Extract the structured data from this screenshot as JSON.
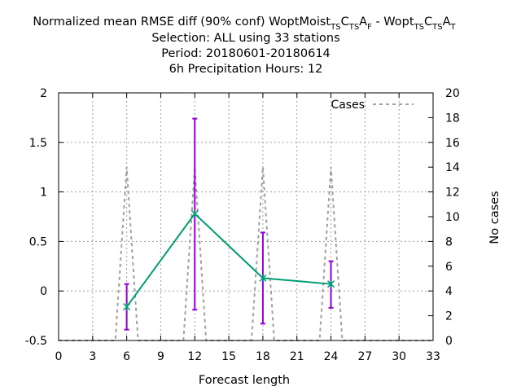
{
  "chart_data": {
    "type": "line",
    "title": {
      "line1_prefix": "Normalized mean RMSE diff (90% conf) WoptMoist",
      "line1_parts": [
        {
          "t": "T",
          "sub": true
        },
        {
          "t": "S",
          "sub": true
        },
        {
          "t": "C",
          "sub": false
        },
        {
          "t": "T",
          "sub": true
        },
        {
          "t": "S",
          "sub": true
        },
        {
          "t": "A",
          "sub": false
        },
        {
          "t": "F",
          "sub": true
        },
        {
          "t": " - Wopt",
          "sub": false
        },
        {
          "t": "T",
          "sub": true
        },
        {
          "t": "S",
          "sub": true
        },
        {
          "t": "C",
          "sub": false
        },
        {
          "t": "T",
          "sub": true
        },
        {
          "t": "S",
          "sub": true
        },
        {
          "t": "A",
          "sub": false
        },
        {
          "t": "T",
          "sub": true
        }
      ],
      "line2": "Selection: ALL using    33 stations",
      "line3": "Period: 20180601-20180614",
      "line4": "6h Precipitation   Hours:  12"
    },
    "xlabel": "Forecast length",
    "ylabel": "",
    "y2label": "No cases",
    "xlim": [
      0,
      33
    ],
    "ylim": [
      -0.5,
      2
    ],
    "y2lim": [
      0,
      20
    ],
    "x_ticks": [
      0,
      3,
      6,
      9,
      12,
      15,
      18,
      21,
      24,
      27,
      30,
      33
    ],
    "y_ticks": [
      -0.5,
      0,
      0.5,
      1,
      1.5,
      2
    ],
    "y_tick_labels": [
      "-0.5",
      "0",
      "0.5",
      "1",
      "1.5",
      "2"
    ],
    "y2_ticks": [
      0,
      2,
      4,
      6,
      8,
      10,
      12,
      14,
      16,
      18,
      20
    ],
    "grid": true,
    "legend": {
      "position": "top-right",
      "entries": [
        "Cases"
      ]
    },
    "series": [
      {
        "points": [
          {
            "x": 6,
            "y": -0.16,
            "low": -0.39,
            "high": 0.07
          },
          {
            "x": 12,
            "y": 0.78,
            "low": -0.19,
            "high": 1.74
          },
          {
            "x": 18,
            "y": 0.13,
            "low": -0.33,
            "high": 0.59
          },
          {
            "x": 24,
            "y": 0.07,
            "low": -0.17,
            "high": 0.3
          }
        ],
        "color": "#009e73",
        "errorbar_color": "#9400d3"
      },
      {
        "name": "Cases",
        "axis": "y2",
        "x": [
          0,
          5,
          6,
          7,
          11,
          12,
          13,
          17,
          18,
          19,
          23,
          24,
          25,
          33
        ],
        "y": [
          0,
          0,
          14,
          0,
          0,
          14,
          0,
          0,
          14,
          0,
          0,
          14,
          0,
          0
        ],
        "color": "#a0a0a0",
        "style": "dashed"
      }
    ]
  }
}
